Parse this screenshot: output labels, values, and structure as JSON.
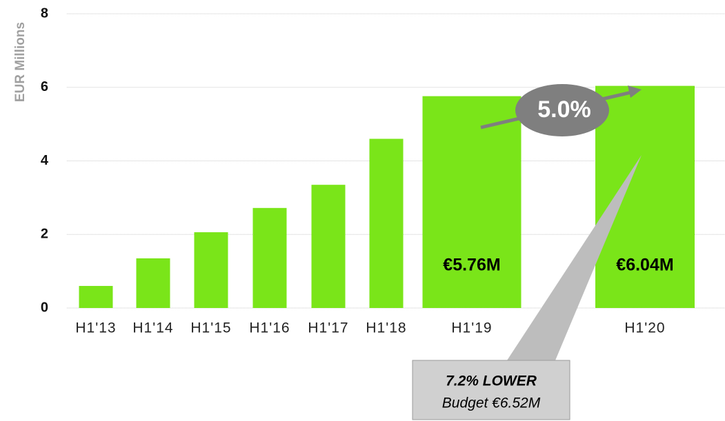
{
  "chart_data": {
    "type": "bar",
    "y_label": "EUR Millions",
    "categories": [
      "H1'13",
      "H1'14",
      "H1'15",
      "H1'16",
      "H1'17",
      "H1'18",
      "H1'19",
      "H1'20"
    ],
    "values": [
      0.6,
      1.35,
      2.06,
      2.72,
      3.35,
      4.6,
      5.76,
      6.04
    ],
    "value_labels": [
      null,
      null,
      null,
      null,
      null,
      null,
      "€5.76M",
      "€6.04M"
    ],
    "color": "#7ae519",
    "ylim": [
      0,
      8
    ],
    "yticks": [
      0,
      2,
      4,
      6,
      8
    ],
    "grid": true,
    "annotations": {
      "growth": "5.0%",
      "callout_title": "7.2% LOWER",
      "callout_text": "Budget €6.52M"
    }
  }
}
